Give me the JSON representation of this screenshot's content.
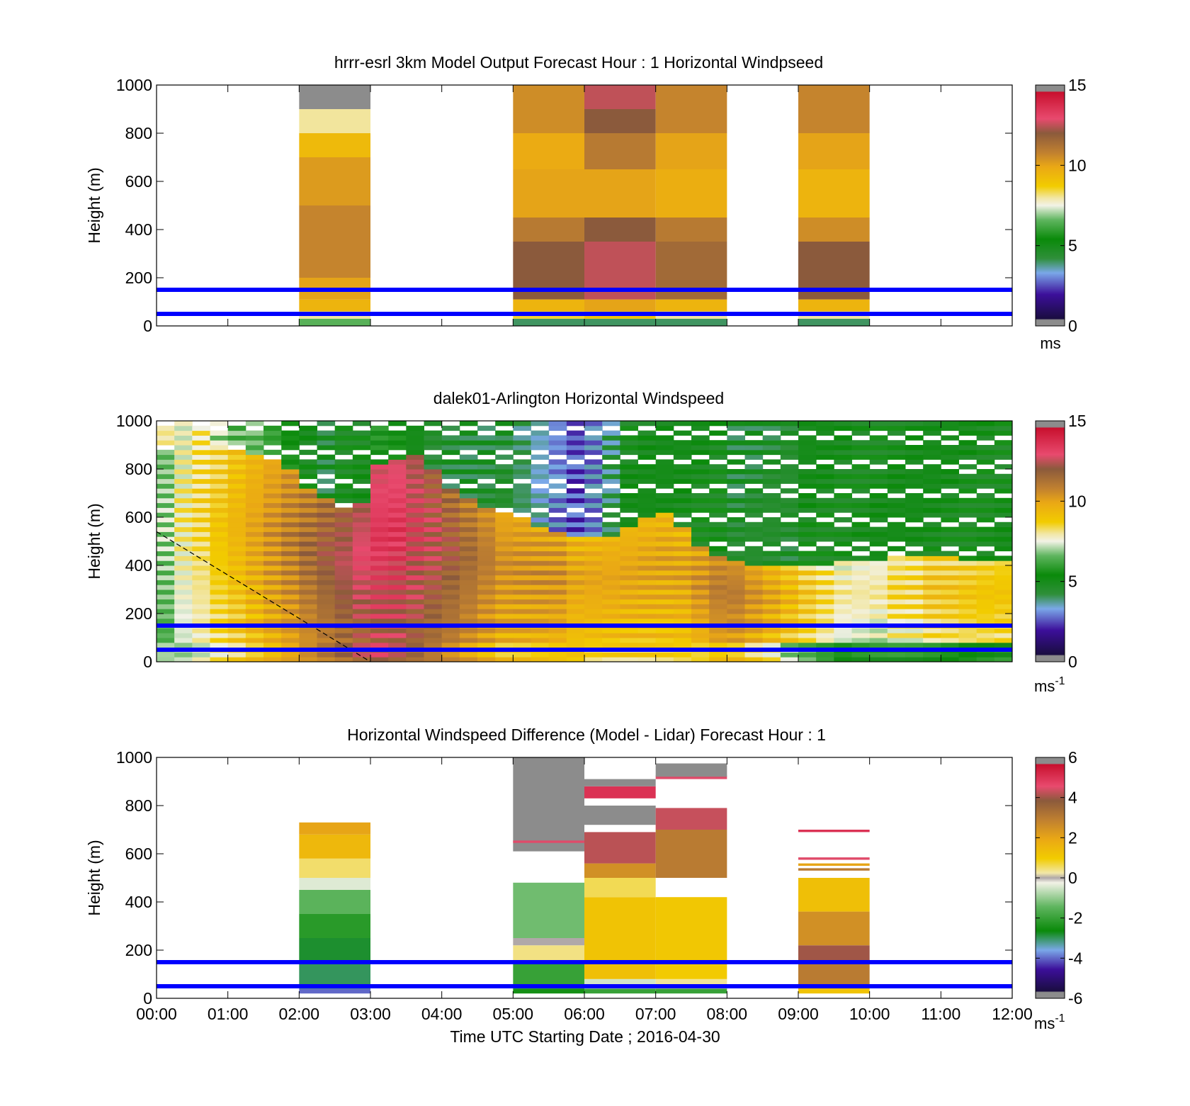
{
  "figure": {
    "xlabel": "Time UTC  Starting Date ; 2016-04-30",
    "x_ticks": [
      "00:00",
      "01:00",
      "02:00",
      "03:00",
      "04:00",
      "05:00",
      "06:00",
      "07:00",
      "08:00",
      "09:00",
      "10:00",
      "11:00",
      "12:00"
    ],
    "reference_heights_m": [
      50,
      150
    ],
    "reference_line_color": "#0000ff"
  },
  "chart_data": [
    {
      "type": "heatmap",
      "title": "hrrr-esrl 3km Model Output   Forecast Hour : 1 Horizontal Windpseed",
      "ylabel": "Height (m)",
      "ylim": [
        0,
        1000
      ],
      "xlim": [
        0,
        12
      ],
      "y_ticks": [
        "0",
        "200",
        "400",
        "600",
        "800",
        "1000"
      ],
      "colorbar": {
        "min": 0,
        "max": 15,
        "ticks": [
          "0",
          "5",
          "10",
          "15"
        ],
        "unit": "ms"
      },
      "columns": [
        {
          "start_hour": 2,
          "end_hour": 3,
          "profile": [
            [
              0,
              30,
              6.5
            ],
            [
              30,
              60,
              8
            ],
            [
              60,
              110,
              9.5
            ],
            [
              110,
              200,
              10
            ],
            [
              200,
              500,
              10.7
            ],
            [
              500,
              700,
              10.2
            ],
            [
              700,
              800,
              9.3
            ],
            [
              800,
              900,
              8
            ],
            [
              900,
              1000,
              15.5
            ]
          ]
        },
        {
          "start_hour": 5,
          "end_hour": 6,
          "profile": [
            [
              0,
              30,
              4
            ],
            [
              30,
              60,
              8.5
            ],
            [
              60,
              110,
              9.5
            ],
            [
              110,
              350,
              12
            ],
            [
              350,
              450,
              11
            ],
            [
              450,
              650,
              10
            ],
            [
              650,
              800,
              9.8
            ],
            [
              800,
              1000,
              10.5
            ]
          ]
        },
        {
          "start_hour": 6,
          "end_hour": 7,
          "profile": [
            [
              0,
              30,
              4
            ],
            [
              30,
              60,
              9
            ],
            [
              60,
              110,
              10
            ],
            [
              110,
              350,
              12.5
            ],
            [
              350,
              450,
              12
            ],
            [
              450,
              650,
              10
            ],
            [
              650,
              800,
              11
            ],
            [
              800,
              900,
              12
            ],
            [
              900,
              1000,
              12.5
            ]
          ]
        },
        {
          "start_hour": 7,
          "end_hour": 8,
          "profile": [
            [
              0,
              30,
              4
            ],
            [
              30,
              60,
              8
            ],
            [
              60,
              110,
              9.5
            ],
            [
              110,
              350,
              11.5
            ],
            [
              350,
              450,
              11
            ],
            [
              450,
              650,
              9.7
            ],
            [
              650,
              800,
              10
            ],
            [
              800,
              1000,
              10.7
            ]
          ]
        },
        {
          "start_hour": 9,
          "end_hour": 10,
          "profile": [
            [
              0,
              30,
              4
            ],
            [
              30,
              60,
              8
            ],
            [
              60,
              110,
              9.5
            ],
            [
              110,
              350,
              12
            ],
            [
              350,
              450,
              10.5
            ],
            [
              450,
              650,
              9.5
            ],
            [
              650,
              800,
              10
            ],
            [
              800,
              1000,
              10.7
            ]
          ]
        }
      ]
    },
    {
      "type": "heatmap",
      "title": "dalek01-Arlington  Horizontal Windspeed",
      "ylabel": "Height (m)",
      "ylim": [
        0,
        1000
      ],
      "xlim": [
        0,
        12
      ],
      "y_ticks": [
        "0",
        "200",
        "400",
        "600",
        "800",
        "1000"
      ],
      "colorbar": {
        "min": 0,
        "max": 15,
        "ticks": [
          "0",
          "5",
          "10",
          "15"
        ],
        "unit": "ms",
        "unit_superscript": "-1"
      },
      "profile_interval_hours": 0.25,
      "profile_start_hour": 0,
      "height_bin_m": 20,
      "max_height_m": 1000,
      "low_level_winds_ms": [
        7,
        8,
        8.5,
        9,
        9.5,
        10,
        10.5,
        11,
        11.5,
        12,
        12.5,
        13,
        13.5,
        13.5,
        13,
        12.5,
        12,
        11.5,
        11,
        10.5,
        10.5,
        10.5,
        10.5,
        10,
        10,
        10,
        10,
        10,
        10,
        10,
        10.5,
        11,
        11,
        10.5,
        10,
        9.5,
        9,
        8.5,
        8,
        8,
        8,
        8.5,
        8.5,
        9,
        9,
        9,
        9,
        9
      ],
      "low_level_top_m": [
        880,
        950,
        980,
        900,
        880,
        870,
        840,
        800,
        720,
        680,
        640,
        660,
        820,
        850,
        860,
        800,
        720,
        680,
        650,
        620,
        600,
        560,
        540,
        520,
        520,
        530,
        560,
        600,
        620,
        560,
        480,
        450,
        420,
        410,
        400,
        400,
        400,
        410,
        420,
        420,
        430,
        440,
        450,
        450,
        440,
        430,
        420,
        420
      ],
      "upper_winds_ms": [
        8,
        7.5,
        7.5,
        7,
        6.5,
        6.5,
        6,
        5.5,
        5,
        4.5,
        5,
        5,
        5.5,
        5.5,
        5,
        4.5,
        4.5,
        4.5,
        4.5,
        4.5,
        4,
        3.5,
        3,
        2.5,
        3,
        4,
        5,
        5,
        5,
        5,
        5,
        5,
        4.5,
        4.5,
        4.5,
        4.5,
        5,
        5,
        5,
        5,
        5,
        5,
        5,
        5,
        5,
        5,
        5,
        5
      ],
      "near_surface_winds_ms": [
        7,
        7,
        7.5,
        8,
        8.5,
        9,
        9.5,
        10,
        10.5,
        11,
        11.5,
        12,
        12.5,
        12,
        11.5,
        11,
        10.5,
        10,
        9.5,
        9,
        9,
        9,
        9,
        9,
        8.5,
        8.5,
        8.5,
        8.5,
        8.5,
        8.5,
        8.5,
        9,
        9,
        8.5,
        8,
        7,
        6.5,
        6,
        5.5,
        5.5,
        5.5,
        5.5,
        5.5,
        5.5,
        5.5,
        5.5,
        5.5,
        5.5
      ],
      "dashed_line": {
        "from": [
          0,
          540
        ],
        "to": [
          3,
          0
        ]
      }
    },
    {
      "type": "heatmap",
      "title": "Horizontal Windspeed Difference (Model - Lidar) Forecast Hour : 1",
      "ylabel": "Height (m)",
      "ylim": [
        0,
        1000
      ],
      "xlim": [
        0,
        12
      ],
      "y_ticks": [
        "0",
        "200",
        "400",
        "600",
        "800",
        "1000"
      ],
      "colorbar": {
        "min": -6,
        "max": 6,
        "ticks": [
          "-6",
          "-4",
          "-2",
          "0",
          "2",
          "4",
          "6"
        ],
        "unit": "ms",
        "unit_superscript": "-1"
      },
      "columns": [
        {
          "start_hour": 2,
          "end_hour": 3,
          "profile": [
            [
              20,
              40,
              -4
            ],
            [
              40,
              150,
              -3
            ],
            [
              150,
              250,
              -2.8
            ],
            [
              250,
              350,
              -2.2
            ],
            [
              350,
              450,
              -1.5
            ],
            [
              450,
              500,
              -0.4
            ],
            [
              500,
              580,
              0.5
            ],
            [
              580,
              680,
              1.5
            ],
            [
              680,
              730,
              2
            ]
          ]
        },
        {
          "start_hour": 5,
          "end_hour": 6,
          "profile": [
            [
              20,
              40,
              -2.5
            ],
            [
              40,
              150,
              -2
            ],
            [
              150,
              220,
              0.4
            ],
            [
              220,
              250,
              0
            ],
            [
              250,
              480,
              -1.3
            ],
            [
              610,
              1000,
              6.5
            ],
            [
              645,
              655,
              4.5
            ]
          ]
        },
        {
          "start_hour": 6,
          "end_hour": 7,
          "profile": [
            [
              20,
              40,
              -2
            ],
            [
              40,
              80,
              -0.5
            ],
            [
              80,
              150,
              1.3
            ],
            [
              150,
              420,
              1.2
            ],
            [
              420,
              500,
              0.6
            ],
            [
              500,
              560,
              2.5
            ],
            [
              560,
              690,
              4.2
            ],
            [
              720,
              800,
              6.5
            ],
            [
              830,
              880,
              5
            ],
            [
              880,
              910,
              6.5
            ]
          ]
        },
        {
          "start_hour": 7,
          "end_hour": 8,
          "profile": [
            [
              20,
              40,
              -2
            ],
            [
              40,
              80,
              0.3
            ],
            [
              80,
              150,
              1
            ],
            [
              150,
              420,
              1.1
            ],
            [
              500,
              700,
              3
            ],
            [
              700,
              790,
              4.3
            ],
            [
              910,
              925,
              4.5
            ],
            [
              920,
              975,
              6.5
            ]
          ]
        },
        {
          "start_hour": 9,
          "end_hour": 10,
          "profile": [
            [
              20,
              50,
              1.2
            ],
            [
              50,
              150,
              3
            ],
            [
              150,
              220,
              4
            ],
            [
              220,
              360,
              2.5
            ],
            [
              360,
              500,
              1.3
            ],
            [
              530,
              540,
              3
            ],
            [
              550,
              560,
              2
            ],
            [
              575,
              585,
              4.5
            ],
            [
              690,
              700,
              5
            ]
          ]
        }
      ]
    }
  ]
}
